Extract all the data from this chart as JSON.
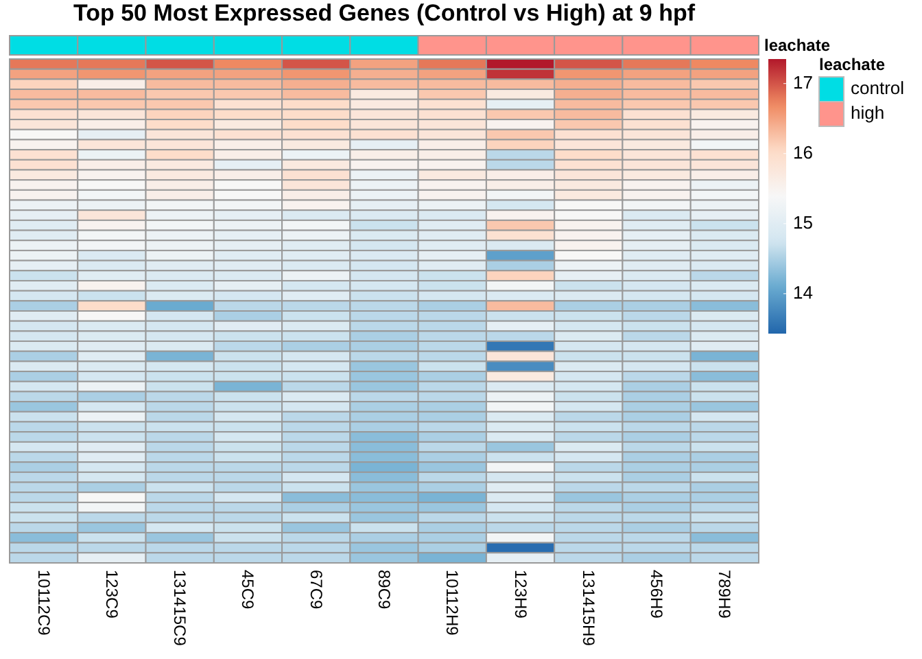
{
  "chart_data": {
    "type": "heatmap",
    "title": "Top 50 Most Expressed Genes (Control vs High) at 9 hpf",
    "categories": [
      "10112C9",
      "123C9",
      "131415C9",
      "45C9",
      "67C9",
      "89C9",
      "10112H9",
      "123H9",
      "131415H9",
      "456H9",
      "789H9"
    ],
    "colors": [
      "#00dde4",
      "#00dde4",
      "#00dde4",
      "#00dde4",
      "#00dde4",
      "#00dde4",
      "#ff948c",
      "#ff948c",
      "#ff948c",
      "#ff948c",
      "#ff948c"
    ],
    "legend_title": "leachate",
    "annotations": [
      "leachate",
      "control",
      "high"
    ],
    "y_categories": [
      null,
      null,
      null,
      null,
      null,
      null,
      null,
      null,
      null,
      null,
      null,
      null,
      null,
      null,
      null,
      null,
      null,
      null,
      null,
      null,
      null,
      null,
      null,
      null,
      null,
      null,
      null,
      null,
      null,
      null,
      null,
      null,
      null,
      null,
      null,
      null,
      null,
      null,
      null,
      null,
      null,
      null,
      null,
      null,
      null,
      null,
      null,
      null,
      null,
      null
    ],
    "clim": [
      13.43,
      17.35
    ],
    "cticks": [
      14,
      15,
      16,
      17
    ],
    "cells": [
      [
        16.8,
        16.8,
        17.0,
        16.7,
        17.0,
        16.5,
        16.8,
        17.35,
        17.0,
        16.8,
        16.7
      ],
      [
        16.5,
        16.6,
        16.5,
        16.5,
        16.6,
        16.4,
        16.5,
        17.2,
        16.6,
        16.5,
        16.5
      ],
      [
        16.1,
        15.6,
        16.3,
        16.3,
        16.4,
        16.3,
        16.3,
        16.3,
        16.4,
        16.3,
        16.2
      ],
      [
        16.3,
        16.3,
        16.2,
        16.2,
        16.3,
        15.7,
        16.2,
        15.7,
        16.4,
        16.3,
        16.3
      ],
      [
        16.2,
        16.2,
        16.2,
        15.9,
        16.0,
        15.7,
        15.9,
        15.1,
        16.3,
        16.2,
        16.2
      ],
      [
        15.9,
        15.8,
        16.1,
        16.0,
        16.0,
        15.8,
        15.9,
        16.2,
        16.3,
        15.9,
        15.7
      ],
      [
        15.8,
        15.6,
        16.0,
        15.7,
        16.0,
        15.8,
        15.8,
        15.5,
        16.2,
        15.9,
        15.5
      ],
      [
        15.4,
        15.1,
        15.8,
        15.9,
        15.9,
        15.9,
        15.8,
        16.2,
        15.9,
        15.8,
        15.6
      ],
      [
        15.5,
        15.8,
        15.8,
        15.6,
        15.7,
        15.1,
        15.6,
        16.1,
        15.8,
        15.7,
        15.3
      ],
      [
        15.9,
        15.2,
        16.0,
        15.6,
        15.2,
        15.6,
        15.6,
        14.6,
        16.0,
        15.8,
        15.9
      ],
      [
        15.9,
        15.6,
        15.7,
        15.1,
        15.7,
        15.5,
        15.5,
        14.6,
        15.9,
        15.8,
        15.8
      ],
      [
        15.7,
        15.5,
        15.7,
        15.6,
        15.9,
        15.2,
        15.7,
        15.6,
        15.8,
        15.7,
        15.6
      ],
      [
        15.5,
        15.4,
        15.6,
        15.4,
        15.8,
        15.2,
        15.5,
        15.6,
        15.7,
        15.5,
        15.2
      ],
      [
        15.5,
        15.3,
        15.6,
        15.4,
        15.6,
        15.2,
        15.5,
        15.3,
        15.7,
        15.5,
        15.3
      ],
      [
        15.2,
        15.2,
        15.3,
        15.3,
        15.5,
        15.1,
        15.2,
        14.8,
        15.4,
        15.3,
        15.2
      ],
      [
        15.1,
        15.8,
        15.2,
        15.1,
        14.9,
        14.9,
        14.9,
        15.5,
        15.4,
        14.9,
        15.1
      ],
      [
        15.0,
        15.5,
        15.3,
        15.2,
        15.3,
        14.7,
        15.0,
        16.2,
        15.5,
        15.0,
        14.7
      ],
      [
        15.0,
        15.3,
        15.2,
        15.1,
        15.2,
        14.9,
        15.0,
        15.9,
        15.5,
        15.1,
        14.9
      ],
      [
        15.2,
        15.3,
        15.2,
        15.1,
        15.0,
        14.8,
        15.0,
        14.9,
        15.5,
        15.1,
        14.9
      ],
      [
        15.2,
        14.9,
        15.2,
        15.0,
        15.0,
        14.9,
        15.1,
        14.0,
        15.4,
        15.0,
        15.0
      ],
      [
        15.1,
        14.9,
        15.0,
        15.0,
        14.9,
        14.8,
        15.0,
        14.5,
        15.2,
        15.0,
        14.9
      ],
      [
        14.7,
        15.0,
        14.9,
        14.9,
        15.2,
        14.8,
        14.7,
        16.1,
        15.1,
        14.9,
        14.6
      ],
      [
        15.0,
        15.5,
        14.9,
        15.1,
        14.8,
        14.8,
        14.7,
        15.3,
        14.7,
        14.8,
        14.9
      ],
      [
        14.8,
        14.7,
        14.9,
        14.8,
        15.0,
        14.7,
        14.8,
        14.9,
        14.9,
        14.8,
        14.8
      ],
      [
        14.5,
        16.0,
        14.1,
        14.6,
        14.6,
        14.6,
        14.5,
        16.3,
        14.5,
        14.5,
        14.3
      ],
      [
        15.0,
        15.4,
        14.8,
        14.5,
        14.7,
        14.6,
        14.6,
        14.7,
        14.7,
        14.6,
        14.9
      ],
      [
        14.8,
        14.9,
        14.8,
        15.0,
        14.9,
        14.6,
        14.6,
        15.1,
        14.8,
        14.7,
        14.8
      ],
      [
        14.8,
        14.9,
        14.8,
        14.7,
        14.7,
        14.5,
        14.6,
        14.6,
        14.9,
        14.6,
        14.9
      ],
      [
        14.9,
        15.0,
        14.9,
        14.6,
        14.5,
        14.5,
        14.6,
        13.6,
        14.8,
        14.8,
        15.0
      ],
      [
        14.5,
        15.0,
        14.2,
        14.7,
        14.8,
        14.6,
        14.6,
        15.8,
        14.7,
        14.7,
        14.2
      ],
      [
        14.9,
        14.9,
        14.8,
        14.7,
        14.8,
        14.4,
        14.7,
        13.8,
        14.9,
        14.8,
        14.7
      ],
      [
        14.5,
        14.8,
        14.7,
        14.7,
        14.7,
        14.4,
        14.5,
        15.7,
        14.8,
        14.6,
        14.3
      ],
      [
        14.8,
        15.2,
        14.7,
        14.2,
        14.6,
        14.4,
        14.6,
        14.9,
        14.8,
        14.5,
        14.7
      ],
      [
        14.6,
        14.5,
        14.6,
        14.7,
        14.9,
        14.6,
        14.6,
        15.2,
        14.7,
        14.5,
        14.7
      ],
      [
        14.4,
        14.8,
        14.6,
        14.7,
        14.8,
        14.5,
        14.5,
        15.3,
        14.8,
        14.5,
        14.4
      ],
      [
        14.7,
        15.2,
        14.6,
        14.8,
        14.6,
        14.5,
        14.5,
        14.9,
        14.6,
        14.5,
        14.8
      ],
      [
        14.6,
        14.7,
        14.7,
        14.7,
        14.6,
        14.5,
        14.6,
        14.9,
        14.7,
        14.6,
        14.6
      ],
      [
        14.6,
        14.7,
        14.6,
        14.8,
        14.6,
        14.3,
        14.5,
        14.9,
        14.6,
        14.5,
        14.6
      ],
      [
        14.8,
        15.0,
        14.6,
        14.7,
        14.6,
        14.3,
        14.6,
        14.4,
        14.9,
        14.6,
        14.7
      ],
      [
        14.6,
        15.0,
        14.6,
        14.7,
        14.6,
        14.3,
        14.5,
        14.7,
        14.8,
        14.5,
        14.5
      ],
      [
        14.5,
        14.8,
        14.6,
        14.6,
        14.6,
        14.2,
        14.4,
        15.3,
        14.6,
        14.5,
        14.5
      ],
      [
        14.6,
        14.8,
        14.6,
        14.6,
        14.8,
        14.3,
        14.6,
        14.8,
        14.7,
        14.5,
        14.7
      ],
      [
        14.6,
        14.5,
        14.7,
        14.6,
        14.7,
        14.4,
        14.5,
        15.0,
        14.6,
        14.6,
        14.5
      ],
      [
        14.6,
        15.4,
        14.6,
        14.8,
        14.3,
        14.3,
        14.2,
        14.9,
        14.4,
        14.5,
        14.5
      ],
      [
        14.7,
        15.3,
        14.6,
        14.6,
        14.5,
        14.4,
        14.4,
        14.8,
        14.6,
        14.5,
        14.6
      ],
      [
        14.7,
        14.6,
        14.6,
        14.6,
        14.7,
        14.4,
        14.6,
        14.7,
        14.6,
        14.6,
        14.7
      ],
      [
        14.6,
        14.4,
        14.8,
        14.7,
        14.4,
        14.7,
        14.5,
        14.6,
        14.6,
        14.5,
        14.6
      ],
      [
        14.3,
        14.7,
        14.4,
        14.7,
        14.6,
        14.5,
        14.5,
        15.3,
        14.6,
        14.6,
        14.3
      ],
      [
        14.6,
        14.6,
        14.6,
        14.6,
        14.6,
        14.4,
        14.5,
        13.5,
        14.6,
        14.6,
        14.6
      ],
      [
        14.6,
        15.1,
        14.6,
        14.6,
        14.6,
        14.4,
        14.2,
        15.1,
        14.6,
        14.5,
        14.6
      ]
    ]
  }
}
